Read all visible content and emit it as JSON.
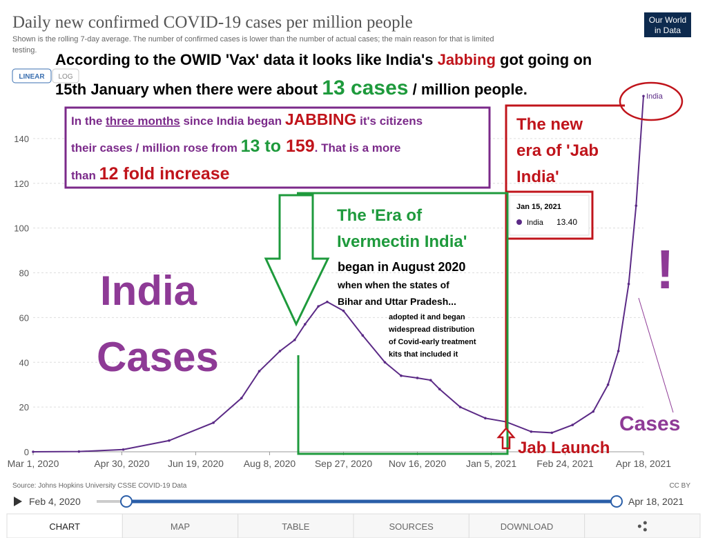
{
  "chart_data": {
    "type": "line",
    "title": "Daily new confirmed COVID-19 cases per million people",
    "subtitle_lines": [
      "Shown is the rolling 7-day average. The number of confirmed cases is lower than the number of actual cases; the main reason for that is limited",
      "testing."
    ],
    "series": [
      {
        "name": "India",
        "color": "#5b2a86",
        "x": [
          "2020-03-01",
          "2020-04-01",
          "2020-05-01",
          "2020-06-01",
          "2020-07-01",
          "2020-07-20",
          "2020-08-01",
          "2020-08-15",
          "2020-08-25",
          "2020-09-01",
          "2020-09-10",
          "2020-09-16",
          "2020-09-27",
          "2020-10-10",
          "2020-10-25",
          "2020-11-05",
          "2020-11-16",
          "2020-11-25",
          "2020-12-01",
          "2020-12-15",
          "2021-01-01",
          "2021-01-15",
          "2021-02-01",
          "2021-02-15",
          "2021-03-01",
          "2021-03-15",
          "2021-03-25",
          "2021-04-01",
          "2021-04-08",
          "2021-04-13",
          "2021-04-18"
        ],
        "values": [
          0,
          0.1,
          1,
          5,
          13,
          24,
          36,
          45,
          50,
          57,
          65,
          67,
          63,
          52,
          40,
          34,
          33,
          32,
          28,
          20,
          15,
          13.4,
          9,
          8.5,
          12,
          18,
          30,
          45,
          75,
          110,
          159
        ]
      }
    ],
    "xlim": [
      "2020-03-01",
      "2021-04-18"
    ],
    "xticks": [
      {
        "value": "2020-03-01",
        "label": "Mar 1, 2020"
      },
      {
        "value": "2020-04-30",
        "label": "Apr 30, 2020"
      },
      {
        "value": "2020-06-19",
        "label": "Jun 19, 2020"
      },
      {
        "value": "2020-08-08",
        "label": "Aug 8, 2020"
      },
      {
        "value": "2020-09-27",
        "label": "Sep 27, 2020"
      },
      {
        "value": "2020-11-16",
        "label": "Nov 16, 2020"
      },
      {
        "value": "2021-01-05",
        "label": "Jan 5, 2021"
      },
      {
        "value": "2021-02-24",
        "label": "Feb 24, 2021"
      },
      {
        "value": "2021-04-18",
        "label": "Apr 18, 2021"
      }
    ],
    "ylim": [
      0,
      160
    ],
    "yticks": [
      0,
      20,
      40,
      60,
      80,
      100,
      120,
      140
    ],
    "grid": true,
    "tooltip": {
      "date": "Jan 15, 2021",
      "name": "India",
      "value_label": "13.40"
    }
  },
  "ui": {
    "logo": [
      "Our World",
      "in Data"
    ],
    "scale_buttons": [
      "LINEAR",
      "LOG"
    ],
    "source": "Source: Johns Hopkins University CSSE COVID-19 Data",
    "license": "CC BY",
    "timeline_start": "Feb 4, 2020",
    "timeline_end": "Apr 18, 2021",
    "tabs": [
      "CHART",
      "MAP",
      "TABLE",
      "SOURCES",
      "DOWNLOAD"
    ]
  },
  "annotations": {
    "headline": [
      [
        "According to the OWID 'Vax' data it looks like India's ",
        "Jabbing",
        " got going on"
      ],
      [
        "15th January when there were about ",
        "13 cases",
        " / million people."
      ]
    ],
    "box": [
      [
        "In the ",
        "three months",
        " since India began ",
        "JABBING",
        " it's citizens"
      ],
      [
        "their cases / million rose from ",
        "13 to ",
        "159",
        ". That is a more"
      ],
      [
        "than ",
        "12 fold increase"
      ]
    ],
    "jab_era": [
      "The new",
      "era of 'Jab",
      "India'"
    ],
    "iver_era": [
      "The 'Era of",
      "Ivermectin India'"
    ],
    "iver_text": [
      "began in August 2020",
      "when when the states of",
      "Bihar and Uttar Pradesh..."
    ],
    "iver_small": [
      "adopted it and began",
      "widespread distribution",
      "of Covid-early treatment",
      "kits that included it"
    ],
    "big": [
      "India",
      "Cases"
    ],
    "exclaim": "!",
    "cases": "Cases",
    "jab_launch": "Jab Launch"
  }
}
